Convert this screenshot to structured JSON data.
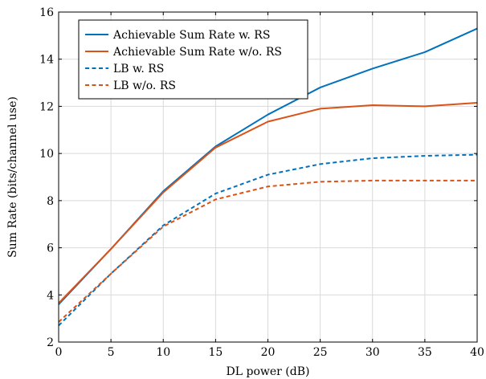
{
  "chart_data": {
    "type": "line",
    "title": "",
    "xlabel": "DL power (dB)",
    "ylabel": "Sum Rate (bits/channel use)",
    "xlim": [
      0,
      40
    ],
    "ylim": [
      2,
      16
    ],
    "xticks": [
      0,
      5,
      10,
      15,
      20,
      25,
      30,
      35,
      40
    ],
    "yticks": [
      2,
      4,
      6,
      8,
      10,
      12,
      14,
      16
    ],
    "grid": true,
    "legend_position": "top-left",
    "x": [
      0,
      5,
      10,
      15,
      20,
      25,
      30,
      35,
      40
    ],
    "series": [
      {
        "name": "Achievable Sum Rate w. RS",
        "values": [
          3.6,
          5.95,
          8.4,
          10.3,
          11.65,
          12.8,
          13.6,
          14.3,
          15.3
        ],
        "color": "#0072BD",
        "dashed": false
      },
      {
        "name": "Achievable Sum Rate w/o. RS",
        "values": [
          3.65,
          5.95,
          8.35,
          10.25,
          11.35,
          11.9,
          12.05,
          12.0,
          12.15
        ],
        "color": "#D95319",
        "dashed": false
      },
      {
        "name": "LB w. RS",
        "values": [
          2.7,
          4.9,
          6.95,
          8.3,
          9.1,
          9.55,
          9.8,
          9.9,
          9.95
        ],
        "color": "#0072BD",
        "dashed": true
      },
      {
        "name": "LB w/o. RS",
        "values": [
          2.85,
          4.9,
          6.9,
          8.05,
          8.6,
          8.8,
          8.85,
          8.85,
          8.85
        ],
        "color": "#D95319",
        "dashed": true
      }
    ]
  }
}
